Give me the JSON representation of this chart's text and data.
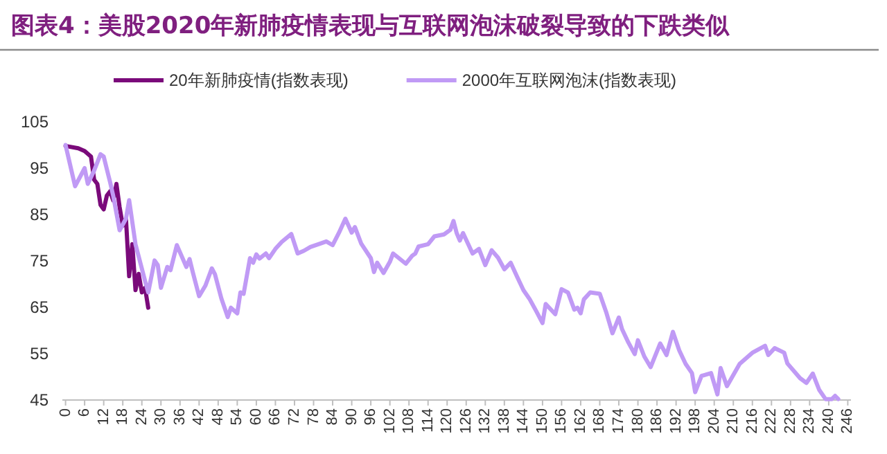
{
  "chart_data": {
    "type": "line",
    "title": "图表4：美股2020年新肺疫情表现与互联网泡沫破裂导致的下跌类似",
    "xlim": [
      -1,
      247
    ],
    "xticks": [
      0,
      6,
      12,
      18,
      24,
      30,
      36,
      42,
      48,
      54,
      60,
      66,
      72,
      78,
      84,
      90,
      96,
      102,
      108,
      114,
      120,
      126,
      132,
      138,
      144,
      150,
      156,
      162,
      168,
      174,
      180,
      186,
      192,
      198,
      204,
      210,
      216,
      222,
      228,
      234,
      240,
      246
    ],
    "ylim": [
      45,
      105
    ],
    "yticks": [
      45,
      55,
      65,
      75,
      85,
      95,
      105
    ],
    "grid": false,
    "legend": "top",
    "marker": "none",
    "line_style": "solid",
    "series": [
      {
        "name": "20年新肺疫情(指数表现)",
        "color": "#7a0a7a",
        "x": [
          0,
          4,
          6,
          8,
          9,
          10,
          11,
          12,
          13,
          14,
          15,
          16,
          17,
          18,
          19,
          20,
          21,
          22,
          23,
          24,
          25,
          26
        ],
        "values": [
          99.8,
          99.3,
          98.7,
          97.5,
          92.5,
          91.6,
          87.1,
          86.1,
          89.1,
          90,
          88,
          91.6,
          86.6,
          82.6,
          84.1,
          71.7,
          78.6,
          68.7,
          72.2,
          68.2,
          69.2,
          64.9
        ]
      },
      {
        "name": "2000年互联网泡沫(指数表现)",
        "color": "#c09af5",
        "x": [
          0,
          3,
          6,
          7,
          9,
          11,
          12,
          14,
          15,
          17,
          19,
          20,
          22,
          25,
          26,
          28,
          29,
          30,
          32,
          33,
          35,
          38,
          39,
          40,
          42,
          44,
          46,
          47,
          49,
          51,
          52,
          54,
          55,
          56,
          58,
          59,
          60,
          61,
          63,
          64,
          66,
          68,
          71,
          73,
          75,
          77,
          80,
          82,
          84,
          86,
          88,
          90,
          91,
          93,
          96,
          97,
          98,
          100,
          102,
          103,
          107,
          109,
          110,
          111,
          114,
          116,
          119,
          121,
          122,
          123,
          124,
          125,
          128,
          130,
          132,
          134,
          136,
          138,
          140,
          142,
          144,
          146,
          148,
          150,
          151,
          154,
          156,
          158,
          160,
          161,
          162,
          163,
          165,
          168,
          170,
          172,
          174,
          175,
          177,
          179,
          180,
          182,
          184,
          187,
          189,
          191,
          193,
          195,
          197,
          198,
          200,
          203,
          205,
          206,
          208,
          212,
          216,
          220,
          221,
          223,
          226,
          227,
          231,
          233,
          235,
          237,
          239,
          241,
          242,
          243
        ],
        "values": [
          100,
          91.1,
          95,
          91.6,
          94.5,
          98,
          97.5,
          92,
          89,
          81.6,
          84.1,
          88.1,
          78.6,
          70.7,
          68.2,
          75.1,
          74.1,
          69.2,
          73.7,
          73,
          78.4,
          73.7,
          75.4,
          72.6,
          67.4,
          69.7,
          73.4,
          72.1,
          66.9,
          62.9,
          64.9,
          63.7,
          68.2,
          67.9,
          75.6,
          74.6,
          76.4,
          75.5,
          76.6,
          75.6,
          77.6,
          79.1,
          80.8,
          76.6,
          77.2,
          78,
          78.7,
          79.2,
          78.4,
          81.1,
          84.1,
          81.1,
          82.3,
          78.7,
          75.6,
          72.6,
          74.6,
          72.4,
          74.8,
          76.6,
          74.4,
          76.1,
          76.6,
          78.1,
          78.6,
          80.3,
          80.7,
          81.7,
          83.6,
          81,
          79.4,
          81,
          76.6,
          77.6,
          74.1,
          77.3,
          75.7,
          73.2,
          74.6,
          71.6,
          68.7,
          66.7,
          64.2,
          61.6,
          65.7,
          63.5,
          68.9,
          68.2,
          64.5,
          64.9,
          63.7,
          66.7,
          68.2,
          67.9,
          64,
          59.4,
          62.8,
          60.3,
          57.4,
          54.9,
          57.9,
          54.4,
          52.1,
          57.2,
          54.7,
          59.7,
          55.7,
          52.8,
          50.8,
          46.7,
          50.2,
          50.8,
          46.2,
          51.9,
          48,
          52.8,
          55.2,
          56.7,
          54.7,
          56.2,
          55.2,
          52.9,
          49.7,
          48.7,
          50.7,
          47.2,
          45.2,
          45.2,
          45.9,
          45.2
        ]
      }
    ]
  }
}
